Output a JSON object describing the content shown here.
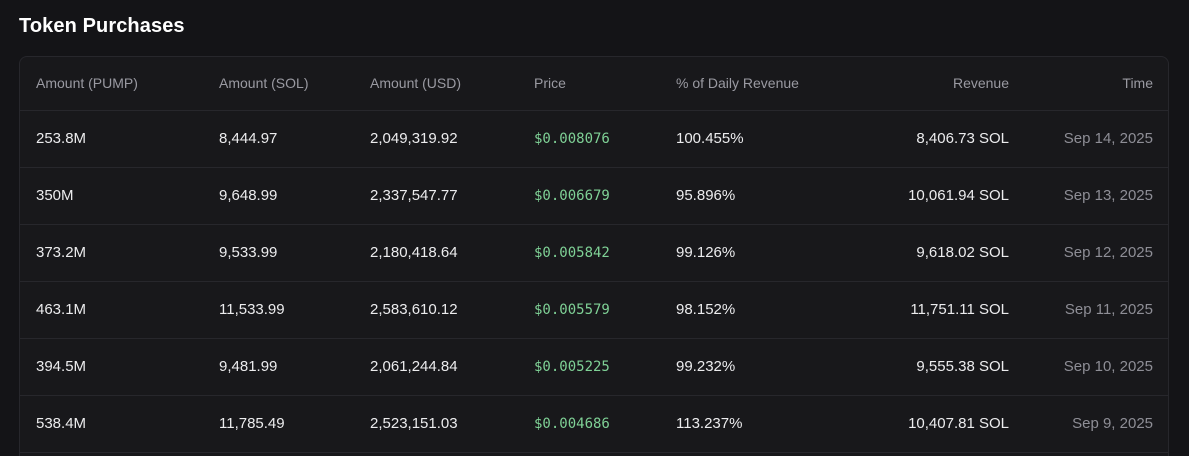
{
  "section": {
    "title": "Token Purchases"
  },
  "table": {
    "columns": [
      "Amount (PUMP)",
      "Amount (SOL)",
      "Amount (USD)",
      "Price",
      "% of Daily Revenue",
      "Revenue",
      "Time"
    ],
    "rows": [
      {
        "pump": "253.8M",
        "sol": "8,444.97",
        "usd": "2,049,319.92",
        "price": "$0.008076",
        "pct": "100.455%",
        "revenue": "8,406.73 SOL",
        "time": "Sep 14, 2025"
      },
      {
        "pump": "350M",
        "sol": "9,648.99",
        "usd": "2,337,547.77",
        "price": "$0.006679",
        "pct": "95.896%",
        "revenue": "10,061.94 SOL",
        "time": "Sep 13, 2025"
      },
      {
        "pump": "373.2M",
        "sol": "9,533.99",
        "usd": "2,180,418.64",
        "price": "$0.005842",
        "pct": "99.126%",
        "revenue": "9,618.02 SOL",
        "time": "Sep 12, 2025"
      },
      {
        "pump": "463.1M",
        "sol": "11,533.99",
        "usd": "2,583,610.12",
        "price": "$0.005579",
        "pct": "98.152%",
        "revenue": "11,751.11 SOL",
        "time": "Sep 11, 2025"
      },
      {
        "pump": "394.5M",
        "sol": "9,481.99",
        "usd": "2,061,244.84",
        "price": "$0.005225",
        "pct": "99.232%",
        "revenue": "9,555.38 SOL",
        "time": "Sep 10, 2025"
      },
      {
        "pump": "538.4M",
        "sol": "11,785.49",
        "usd": "2,523,151.03",
        "price": "$0.004686",
        "pct": "113.237%",
        "revenue": "10,407.81 SOL",
        "time": "Sep 9, 2025"
      }
    ]
  },
  "colors": {
    "background": "#141417",
    "card": "#18181b",
    "border": "#27272c",
    "price": "#7fd196",
    "muted": "#8e8e96"
  }
}
